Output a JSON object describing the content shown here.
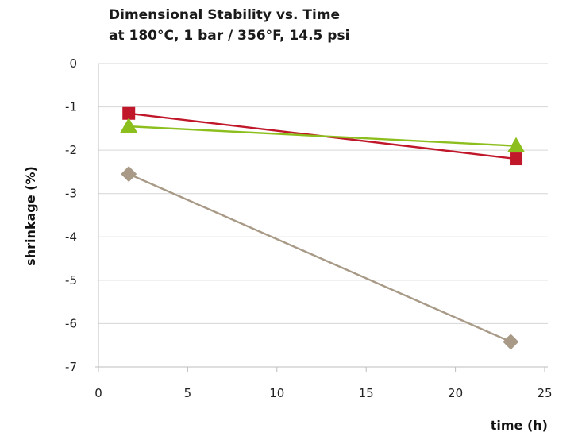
{
  "chart_data": {
    "type": "line",
    "title_lines": [
      "Dimensional Stability vs. Time",
      "at 180°C, 1 bar / 356°F, 14.5 psi"
    ],
    "xlabel": "time (h)",
    "ylabel": "shrinkage (%)",
    "xlim": [
      0,
      25
    ],
    "ylim": [
      -7,
      0
    ],
    "xticks": [
      0,
      5,
      10,
      15,
      20,
      25
    ],
    "yticks": [
      0,
      -1,
      -2,
      -3,
      -4,
      -5,
      -6,
      -7
    ],
    "grid": "horizontal",
    "legend": "none",
    "series": [
      {
        "color": "#c0182a",
        "marker": "square",
        "points": [
          [
            1.7,
            -1.15
          ],
          [
            23.4,
            -2.2
          ]
        ]
      },
      {
        "color": "#8cbf1e",
        "marker": "triangle",
        "points": [
          [
            1.7,
            -1.45
          ],
          [
            23.4,
            -1.9
          ]
        ]
      },
      {
        "color": "#a89a86",
        "marker": "diamond",
        "points": [
          [
            1.7,
            -2.55
          ],
          [
            23.1,
            -6.42
          ]
        ]
      }
    ]
  }
}
